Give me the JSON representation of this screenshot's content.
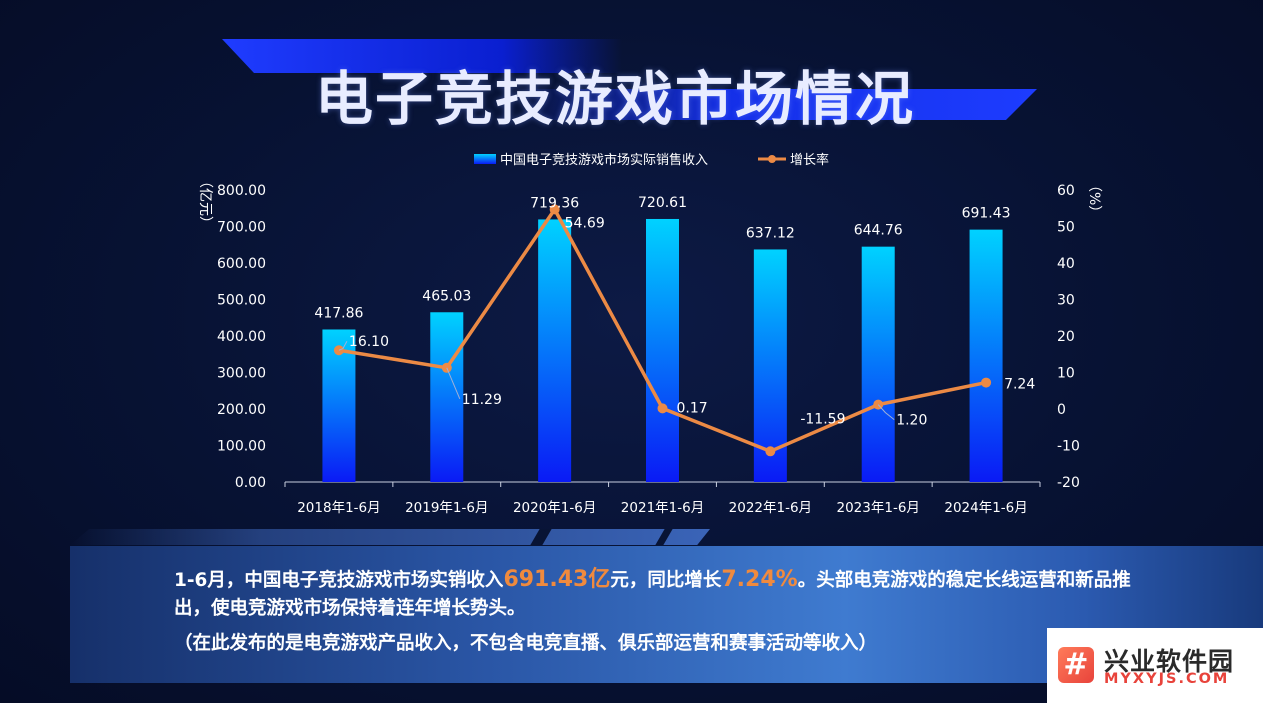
{
  "page": {
    "title": "电子竞技游戏市场情况"
  },
  "chart_data": {
    "type": "bar",
    "categories": [
      "2018年1-6月",
      "2019年1-6月",
      "2020年1-6月",
      "2021年1-6月",
      "2022年1-6月",
      "2023年1-6月",
      "2024年1-6月"
    ],
    "series": [
      {
        "name": "中国电子竞技游戏市场实际销售收入",
        "type": "bar",
        "axis": "left",
        "values": [
          417.86,
          465.03,
          719.36,
          720.61,
          637.12,
          644.76,
          691.43
        ],
        "labels": [
          "417.86",
          "465.03",
          "719.36",
          "720.61",
          "637.12",
          "644.76",
          "691.43"
        ]
      },
      {
        "name": "增长率",
        "type": "line",
        "axis": "right",
        "values": [
          16.1,
          11.29,
          54.69,
          0.17,
          -11.59,
          1.2,
          7.24
        ],
        "labels": [
          "16.10",
          "11.29",
          "54.69",
          "0.17",
          "-11.59",
          "1.20",
          "7.24"
        ]
      }
    ],
    "ylabel_left": "（亿元）",
    "ylabel_right": "（%）",
    "ylim_left": [
      0,
      800
    ],
    "yticks_left": [
      "0.00",
      "100.00",
      "200.00",
      "300.00",
      "400.00",
      "500.00",
      "600.00",
      "700.00",
      "800.00"
    ],
    "ylim_right": [
      -20,
      60
    ],
    "yticks_right": [
      "-20",
      "-10",
      "0",
      "10",
      "20",
      "30",
      "40",
      "50",
      "60"
    ],
    "legend_position": "top-center",
    "grid": false,
    "colors": {
      "bar_top": "#00d2ff",
      "bar_bottom": "#0a1af5",
      "line": "#ec8a45",
      "text": "#ffffff"
    }
  },
  "summary": {
    "part1": "1-6月，中国电子竞技游戏市场实销收入",
    "highlight1": "691.43亿",
    "part2": "元，同比增长",
    "highlight2": "7.24%",
    "part3": "。头部电竞游戏的稳定长线运营和新品推出，使电竞游戏市场保持着连年增长势头。",
    "note": "（在此发布的是电竞游戏产品收入，不包含电竞直播、俱乐部运营和赛事活动等收入）"
  },
  "watermark": {
    "icon": "hash-logo-icon",
    "logo_char": "#",
    "name": "兴业软件园",
    "url": "MYXYJS.COM"
  }
}
